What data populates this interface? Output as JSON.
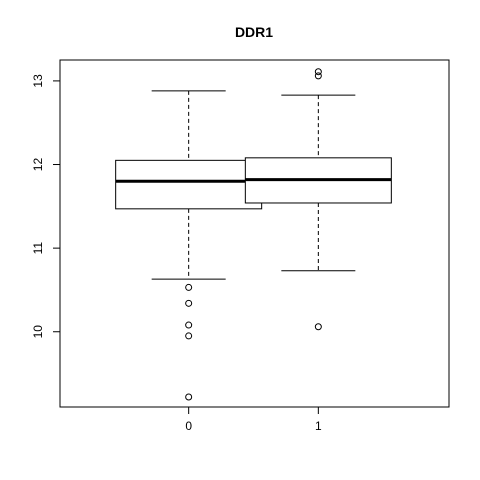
{
  "chart_data": {
    "type": "box",
    "title": "DDR1",
    "xlabel": "",
    "ylabel": "",
    "categories": [
      "0",
      "1"
    ],
    "yticks": [
      10,
      11,
      12,
      13
    ],
    "ylim": [
      9.1,
      13.25
    ],
    "grid": false,
    "legend": "none",
    "boxes": [
      {
        "category": "0",
        "whisker_low": 10.63,
        "q1": 11.47,
        "median": 11.8,
        "q3": 12.05,
        "whisker_high": 12.88,
        "outliers": [
          10.53,
          10.34,
          10.08,
          9.95,
          9.22
        ]
      },
      {
        "category": "1",
        "whisker_low": 10.73,
        "q1": 11.54,
        "median": 11.82,
        "q3": 12.08,
        "whisker_high": 12.83,
        "outliers": [
          13.11,
          13.06,
          10.06
        ]
      }
    ]
  }
}
